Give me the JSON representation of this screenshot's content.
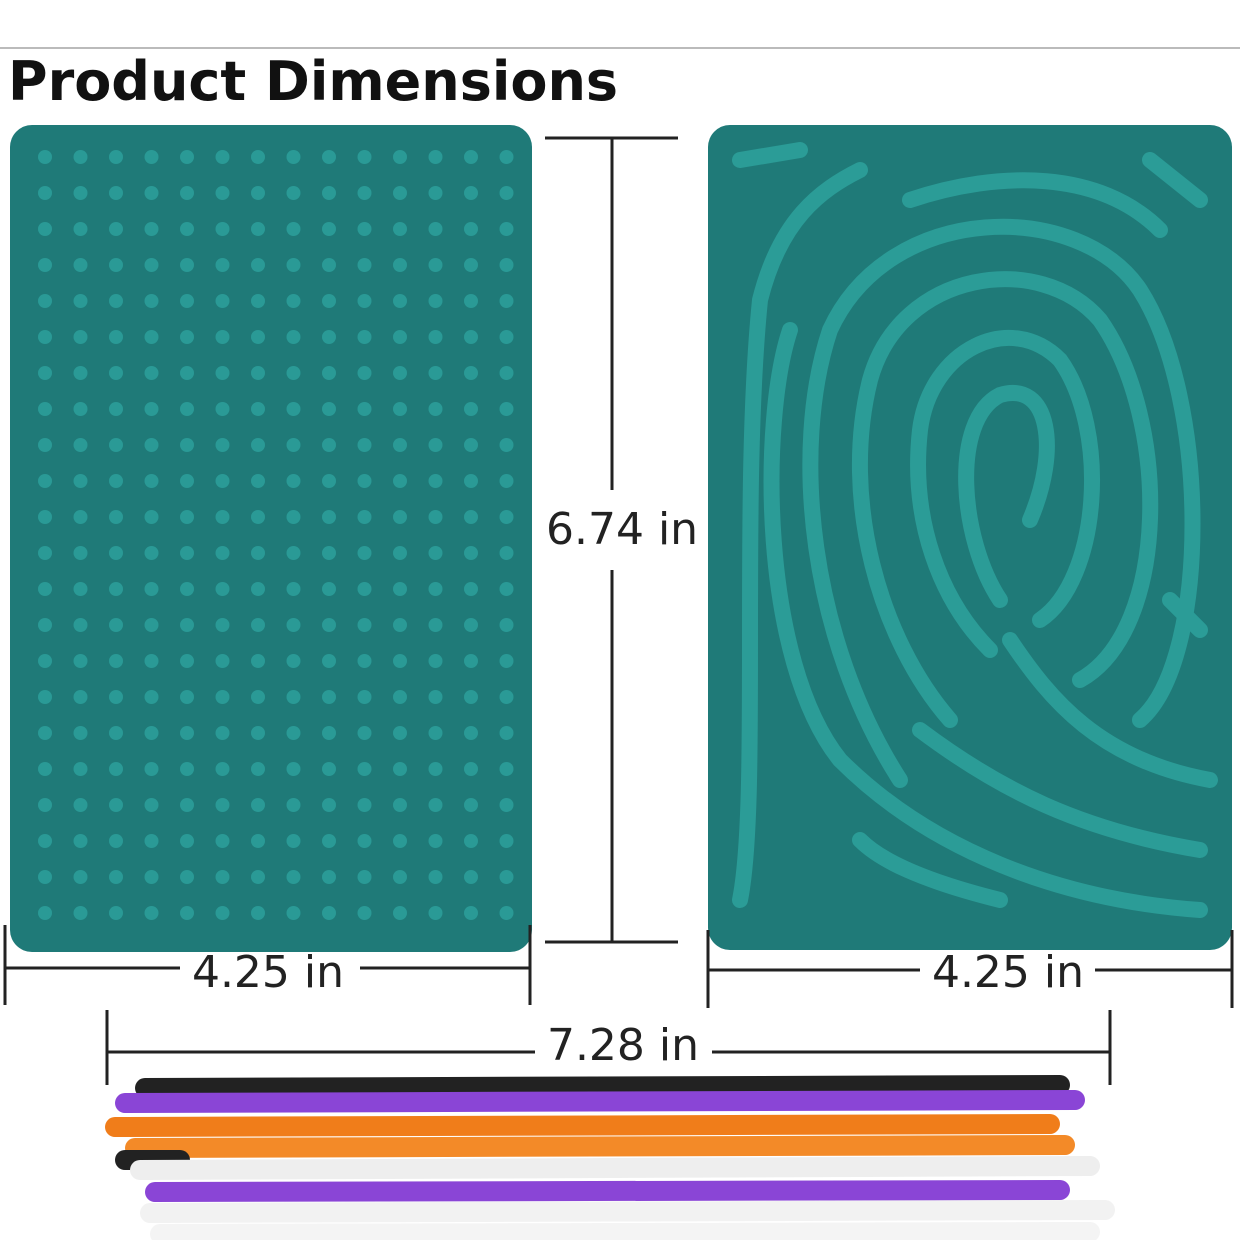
{
  "title": "Product Dimensions",
  "dimensions": {
    "height": "6.74 in",
    "left_width": "4.25 in",
    "right_width": "4.25 in",
    "stick_length": "7.28 in"
  }
}
